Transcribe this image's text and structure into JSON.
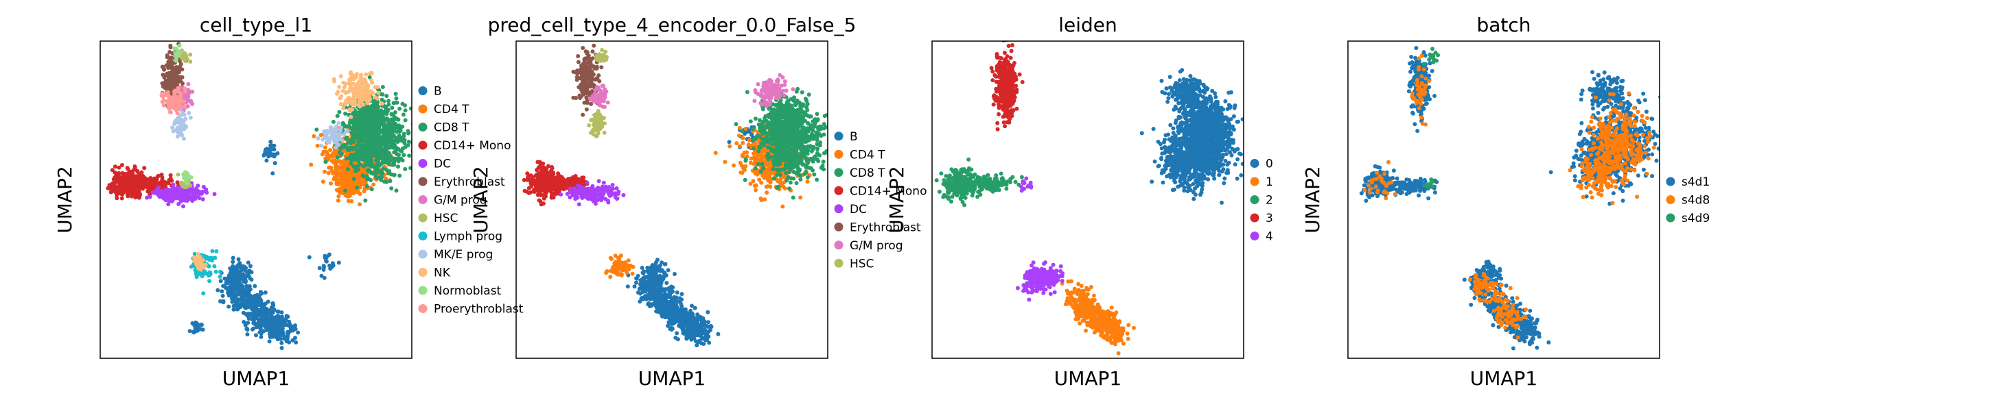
{
  "figure": {
    "xlabel": "UMAP1",
    "ylabel": "UMAP2"
  },
  "chart_data": [
    {
      "type": "scatter",
      "title": "cell_type_l1",
      "xlabel": "UMAP1",
      "ylabel": "UMAP2",
      "grid": false,
      "legend_position": "right",
      "legend": [
        "B",
        "CD4 T",
        "CD8 T",
        "CD14+ Mono",
        "DC",
        "Erythroblast",
        "G/M prog",
        "HSC",
        "Lymph prog",
        "MK/E prog",
        "NK",
        "Normoblast",
        "Proerythroblast"
      ],
      "colors": [
        "#1f77b4",
        "#ff7f0e",
        "#279e68",
        "#d62728",
        "#aa40fc",
        "#8c564b",
        "#e377c2",
        "#b5bd61",
        "#17becf",
        "#aec7e8",
        "#ffbb78",
        "#98df8a",
        "#ff9896"
      ],
      "series": [
        {
          "name": "B",
          "clusters": [
            [
              0.5,
              0.15,
              0.045,
              0.022,
              300,
              -50
            ],
            [
              0.57,
              0.1,
              0.03,
              0.02,
              180,
              -45
            ],
            [
              0.43,
              0.22,
              0.025,
              0.02,
              120,
              -60
            ],
            [
              0.45,
              0.27,
              0.02,
              0.018,
              80,
              -70
            ],
            [
              0.73,
              0.3,
              0.02,
              0.02,
              20,
              0
            ],
            [
              0.55,
              0.65,
              0.013,
              0.02,
              30,
              0
            ],
            [
              0.31,
              0.1,
              0.01,
              0.01,
              20,
              0
            ]
          ]
        },
        {
          "name": "CD4 T",
          "clusters": [
            [
              0.82,
              0.63,
              0.045,
              0.045,
              500,
              0
            ],
            [
              0.8,
              0.55,
              0.025,
              0.02,
              150,
              0
            ]
          ]
        },
        {
          "name": "CD8 T",
          "clusters": [
            [
              0.88,
              0.69,
              0.05,
              0.06,
              800,
              0
            ],
            [
              0.86,
              0.76,
              0.035,
              0.03,
              200,
              0
            ]
          ]
        },
        {
          "name": "CD14+ Mono",
          "clusters": [
            [
              0.09,
              0.55,
              0.025,
              0.022,
              280,
              0
            ],
            [
              0.17,
              0.55,
              0.03,
              0.012,
              120,
              0
            ]
          ]
        },
        {
          "name": "DC",
          "clusters": [
            [
              0.25,
              0.52,
              0.04,
              0.012,
              200,
              0
            ]
          ]
        },
        {
          "name": "Erythroblast",
          "clusters": [
            [
              0.23,
              0.88,
              0.015,
              0.04,
              200,
              0
            ]
          ]
        },
        {
          "name": "G/M prog",
          "clusters": [
            [
              0.27,
              0.82,
              0.015,
              0.015,
              60,
              0
            ]
          ]
        },
        {
          "name": "HSC",
          "clusters": [
            [
              0.27,
              0.95,
              0.01,
              0.01,
              25,
              0
            ],
            [
              0.27,
              0.55,
              0.01,
              0.01,
              20,
              0
            ]
          ]
        },
        {
          "name": "Lymph prog",
          "clusters": [
            [
              0.33,
              0.29,
              0.02,
              0.022,
              80,
              0
            ]
          ]
        },
        {
          "name": "MK/E prog",
          "clusters": [
            [
              0.26,
              0.74,
              0.012,
              0.02,
              60,
              0
            ],
            [
              0.75,
              0.7,
              0.02,
              0.02,
              60,
              0
            ]
          ]
        },
        {
          "name": "NK",
          "clusters": [
            [
              0.83,
              0.84,
              0.03,
              0.025,
              180,
              0
            ],
            [
              0.32,
              0.3,
              0.012,
              0.012,
              30,
              0
            ]
          ]
        },
        {
          "name": "Normoblast",
          "clusters": [
            [
              0.25,
              0.96,
              0.008,
              0.01,
              15,
              0
            ],
            [
              0.28,
              0.57,
              0.008,
              0.008,
              15,
              0
            ]
          ]
        },
        {
          "name": "Proerythroblast",
          "clusters": [
            [
              0.24,
              0.81,
              0.018,
              0.018,
              100,
              0
            ]
          ]
        }
      ]
    },
    {
      "type": "scatter",
      "title": "pred_cell_type_4_encoder_0.0_False_5",
      "xlabel": "UMAP1",
      "ylabel": "UMAP2",
      "grid": false,
      "legend_position": "right",
      "legend": [
        "B",
        "CD4 T",
        "CD8 T",
        "CD14+ Mono",
        "DC",
        "Erythroblast",
        "G/M prog",
        "HSC"
      ],
      "colors": [
        "#1f77b4",
        "#ff7f0e",
        "#279e68",
        "#d62728",
        "#aa40fc",
        "#8c564b",
        "#e377c2",
        "#b5bd61"
      ],
      "series": [
        {
          "name": "B",
          "clusters": [
            [
              0.5,
              0.15,
              0.045,
              0.022,
              300,
              -50
            ],
            [
              0.57,
              0.1,
              0.03,
              0.02,
              180,
              -45
            ],
            [
              0.43,
              0.22,
              0.025,
              0.02,
              120,
              -60
            ],
            [
              0.45,
              0.27,
              0.02,
              0.018,
              80,
              -70
            ],
            [
              0.75,
              0.7,
              0.015,
              0.02,
              30,
              0
            ]
          ]
        },
        {
          "name": "CD4 T",
          "clusters": [
            [
              0.82,
              0.63,
              0.045,
              0.045,
              500,
              0
            ],
            [
              0.33,
              0.29,
              0.018,
              0.02,
              70,
              0
            ]
          ]
        },
        {
          "name": "CD8 T",
          "clusters": [
            [
              0.88,
              0.69,
              0.05,
              0.06,
              800,
              0
            ],
            [
              0.86,
              0.76,
              0.035,
              0.03,
              200,
              0
            ]
          ]
        },
        {
          "name": "CD14+ Mono",
          "clusters": [
            [
              0.09,
              0.55,
              0.025,
              0.022,
              280,
              0
            ],
            [
              0.17,
              0.55,
              0.03,
              0.012,
              120,
              0
            ]
          ]
        },
        {
          "name": "DC",
          "clusters": [
            [
              0.25,
              0.52,
              0.04,
              0.012,
              200,
              0
            ]
          ]
        },
        {
          "name": "Erythroblast",
          "clusters": [
            [
              0.23,
              0.88,
              0.015,
              0.04,
              200,
              0
            ]
          ]
        },
        {
          "name": "G/M prog",
          "clusters": [
            [
              0.27,
              0.82,
              0.015,
              0.015,
              60,
              0
            ],
            [
              0.82,
              0.84,
              0.025,
              0.02,
              120,
              0
            ]
          ]
        },
        {
          "name": "HSC",
          "clusters": [
            [
              0.26,
              0.74,
              0.012,
              0.02,
              60,
              0
            ],
            [
              0.27,
              0.95,
              0.01,
              0.01,
              25,
              0
            ]
          ]
        }
      ]
    },
    {
      "type": "scatter",
      "title": "leiden",
      "xlabel": "UMAP1",
      "ylabel": "UMAP2",
      "grid": false,
      "legend_position": "right",
      "legend": [
        "0",
        "1",
        "2",
        "3",
        "4"
      ],
      "colors": [
        "#1f77b4",
        "#ff7f0e",
        "#279e68",
        "#d62728",
        "#aa40fc"
      ],
      "series": [
        {
          "name": "0",
          "clusters": [
            [
              0.82,
              0.63,
              0.045,
              0.045,
              500,
              0
            ],
            [
              0.88,
              0.69,
              0.05,
              0.06,
              800,
              0
            ],
            [
              0.86,
              0.76,
              0.035,
              0.03,
              200,
              0
            ],
            [
              0.82,
              0.84,
              0.03,
              0.025,
              180,
              0
            ]
          ]
        },
        {
          "name": "1",
          "clusters": [
            [
              0.5,
              0.15,
              0.045,
              0.022,
              300,
              -50
            ],
            [
              0.57,
              0.1,
              0.03,
              0.02,
              180,
              -45
            ]
          ]
        },
        {
          "name": "2",
          "clusters": [
            [
              0.09,
              0.55,
              0.025,
              0.022,
              250,
              0
            ],
            [
              0.18,
              0.55,
              0.035,
              0.012,
              150,
              0
            ]
          ]
        },
        {
          "name": "3",
          "clusters": [
            [
              0.24,
              0.86,
              0.018,
              0.05,
              350,
              0
            ]
          ]
        },
        {
          "name": "4",
          "clusters": [
            [
              0.35,
              0.25,
              0.02,
              0.03,
              220,
              -60
            ],
            [
              0.3,
              0.55,
              0.008,
              0.008,
              15,
              0
            ]
          ]
        }
      ]
    },
    {
      "type": "scatter",
      "title": "batch",
      "xlabel": "UMAP1",
      "ylabel": "UMAP2",
      "grid": false,
      "legend_position": "right",
      "legend": [
        "s4d1",
        "s4d8",
        "s4d9"
      ],
      "colors": [
        "#1f77b4",
        "#ff7f0e",
        "#279e68"
      ],
      "series": [
        {
          "name": "s4d1",
          "clusters": [
            [
              0.5,
              0.15,
              0.045,
              0.022,
              200,
              -50
            ],
            [
              0.57,
              0.1,
              0.03,
              0.02,
              120,
              -45
            ],
            [
              0.43,
              0.22,
              0.025,
              0.02,
              80,
              -60
            ],
            [
              0.45,
              0.27,
              0.02,
              0.018,
              60,
              -70
            ],
            [
              0.82,
              0.63,
              0.045,
              0.045,
              300,
              0
            ],
            [
              0.88,
              0.69,
              0.05,
              0.06,
              400,
              0
            ],
            [
              0.83,
              0.84,
              0.03,
              0.025,
              150,
              0
            ],
            [
              0.1,
              0.55,
              0.028,
              0.02,
              180,
              0
            ],
            [
              0.2,
              0.54,
              0.045,
              0.012,
              120,
              0
            ],
            [
              0.23,
              0.86,
              0.015,
              0.05,
              220,
              0
            ]
          ]
        },
        {
          "name": "s4d8",
          "clusters": [
            [
              0.86,
              0.67,
              0.045,
              0.055,
              350,
              0
            ],
            [
              0.8,
              0.58,
              0.03,
              0.03,
              120,
              0
            ],
            [
              0.5,
              0.16,
              0.045,
              0.022,
              90,
              -50
            ],
            [
              0.43,
              0.23,
              0.02,
              0.018,
              40,
              -60
            ],
            [
              0.23,
              0.85,
              0.012,
              0.04,
              50,
              0
            ],
            [
              0.1,
              0.55,
              0.025,
              0.02,
              30,
              0
            ]
          ]
        },
        {
          "name": "s4d9",
          "clusters": [
            [
              0.27,
              0.95,
              0.01,
              0.01,
              15,
              0
            ],
            [
              0.26,
              0.55,
              0.01,
              0.008,
              10,
              0
            ]
          ]
        }
      ]
    }
  ]
}
